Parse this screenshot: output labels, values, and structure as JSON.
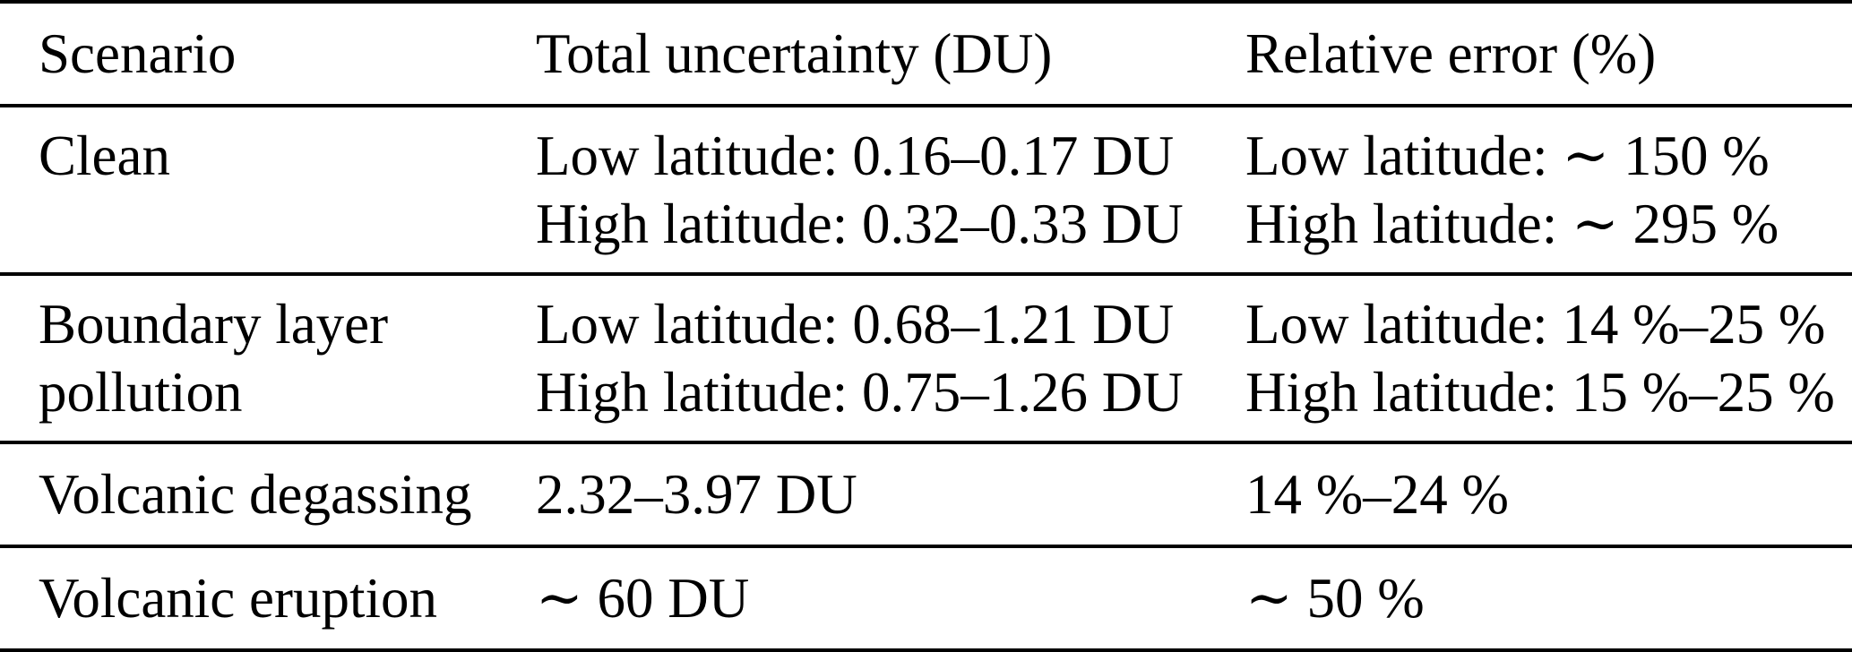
{
  "table": {
    "columns": [
      "Scenario",
      "Total uncertainty (DU)",
      "Relative error (%)"
    ],
    "rows": [
      {
        "scenario_lines": [
          "Clean"
        ],
        "uncertainty_lines": [
          "Low latitude: 0.16–0.17 DU",
          "High latitude: 0.32–0.33 DU"
        ],
        "error_lines": [
          "Low latitude: ∼ 150 %",
          "High latitude: ∼ 295 %"
        ]
      },
      {
        "scenario_lines": [
          "Boundary layer",
          "pollution"
        ],
        "uncertainty_lines": [
          "Low latitude: 0.68–1.21 DU",
          "High latitude: 0.75–1.26 DU"
        ],
        "error_lines": [
          "Low latitude: 14 %–25 %",
          "High latitude: 15 %–25 %"
        ]
      },
      {
        "scenario_lines": [
          "Volcanic degassing"
        ],
        "uncertainty_lines": [
          "2.32–3.97 DU"
        ],
        "error_lines": [
          "14 %–24 %"
        ]
      },
      {
        "scenario_lines": [
          "Volcanic eruption"
        ],
        "uncertainty_lines": [
          "∼ 60 DU"
        ],
        "error_lines": [
          "∼ 50 %"
        ]
      }
    ]
  }
}
